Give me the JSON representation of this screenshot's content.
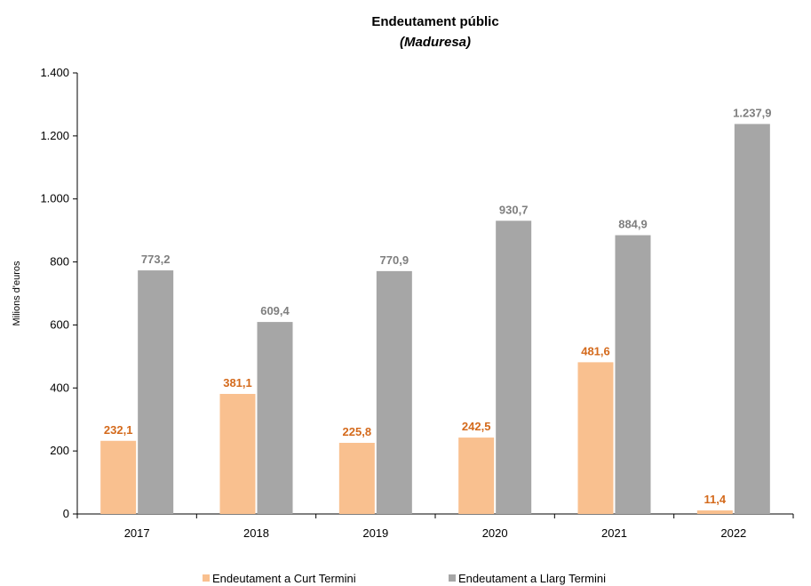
{
  "chart_data": {
    "type": "bar",
    "title": "Endeutament públic",
    "subtitle": "(Maduresa)",
    "ylabel": "Milions d'euros",
    "xlabel": "",
    "categories": [
      "2017",
      "2018",
      "2019",
      "2020",
      "2021",
      "2022"
    ],
    "ylim": [
      0,
      1400
    ],
    "yticks": [
      0,
      200,
      400,
      600,
      800,
      1000,
      1200,
      1400
    ],
    "ytick_labels": [
      "0",
      "200",
      "400",
      "600",
      "800",
      "1.000",
      "1.200",
      "1.400"
    ],
    "grid": false,
    "legend_position": "bottom",
    "series": [
      {
        "name": "Endeutament a Curt Termini",
        "color": "#f9c08f",
        "label_color": "#d46a1c",
        "values": [
          232.1,
          381.1,
          225.8,
          242.5,
          481.6,
          11.4
        ],
        "labels": [
          "232,1",
          "381,1",
          "225,8",
          "242,5",
          "481,6",
          "11,4"
        ]
      },
      {
        "name": "Endeutament a Llarg Termini",
        "color": "#a6a6a6",
        "label_color": "#7f7f7f",
        "values": [
          773.2,
          609.4,
          770.9,
          930.7,
          884.9,
          1237.9
        ],
        "labels": [
          "773,2",
          "609,4",
          "770,9",
          "930,7",
          "884,9",
          "1.237,9"
        ]
      }
    ]
  }
}
